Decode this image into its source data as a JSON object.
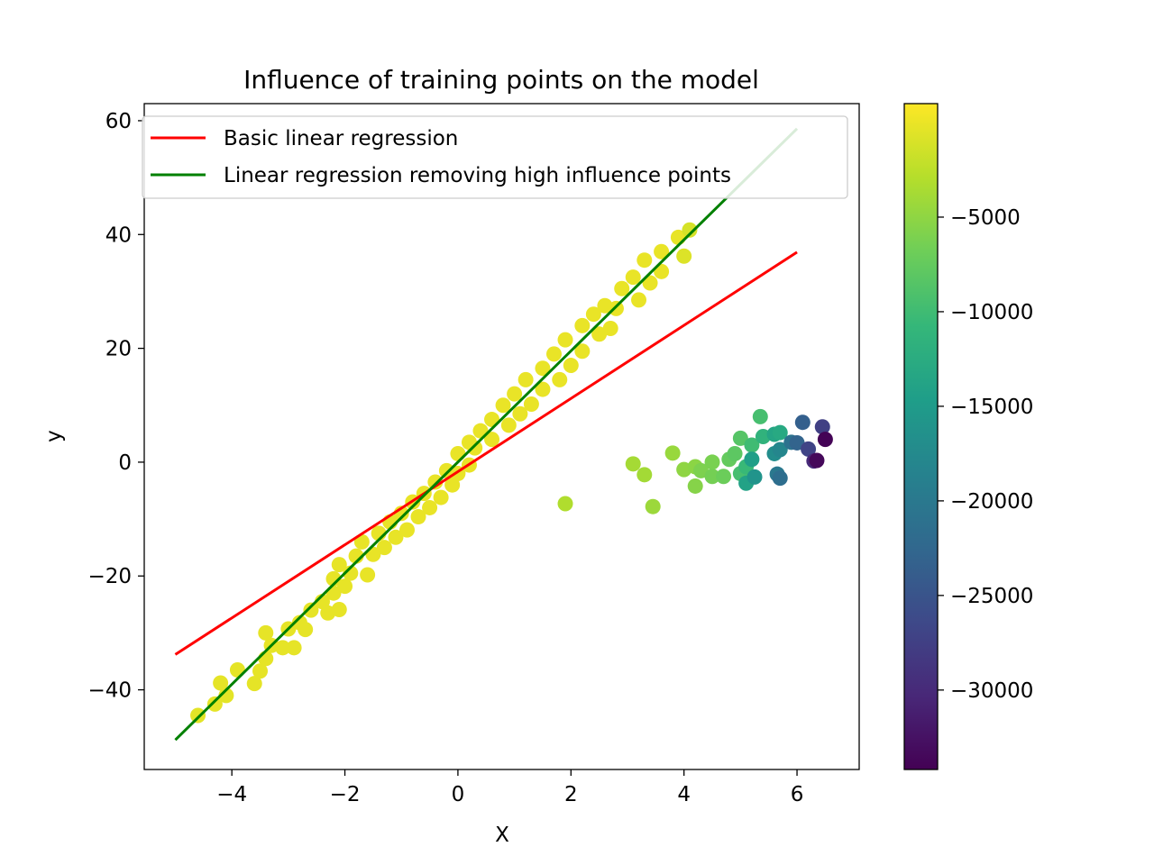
{
  "chart_data": {
    "type": "scatter",
    "title": "Influence of training points on the model",
    "xlabel": "X",
    "ylabel": "y",
    "xlim": [
      -5.55,
      7.1
    ],
    "ylim": [
      -54,
      63
    ],
    "xticks": [
      -4,
      -2,
      0,
      2,
      4,
      6
    ],
    "yticks": [
      -40,
      -20,
      0,
      20,
      40,
      60
    ],
    "grid": false,
    "legend": {
      "placement": "upper-left",
      "entries": [
        {
          "label": "Basic linear regression",
          "color": "#ff0000"
        },
        {
          "label": "Linear regression removing high influence points",
          "color": "#008000"
        }
      ]
    },
    "lines": [
      {
        "name": "Basic linear regression",
        "color": "#ff0000",
        "x": [
          -5,
          6
        ],
        "y": [
          -33.8,
          36.9
        ]
      },
      {
        "name": "Linear regression removing high influence points",
        "color": "#008000",
        "x": [
          -5,
          6
        ],
        "y": [
          -48.8,
          58.6
        ]
      }
    ],
    "colorbar": {
      "range": [
        -34200,
        1000
      ],
      "ticks": [
        -5000,
        -10000,
        -15000,
        -20000,
        -25000,
        -30000
      ],
      "tick_labels": [
        "−5000",
        "−10000",
        "−15000",
        "−20000",
        "−25000",
        "−30000"
      ],
      "colormap": "viridis"
    },
    "points": [
      {
        "x": -4.6,
        "y": -44.5,
        "c": -400
      },
      {
        "x": -4.3,
        "y": -42.5,
        "c": -300
      },
      {
        "x": -4.1,
        "y": -41.0,
        "c": -400
      },
      {
        "x": -4.2,
        "y": -38.8,
        "c": -300
      },
      {
        "x": -3.9,
        "y": -36.5,
        "c": -300
      },
      {
        "x": -3.6,
        "y": -38.9,
        "c": -300
      },
      {
        "x": -3.5,
        "y": -36.7,
        "c": -250
      },
      {
        "x": -3.4,
        "y": -34.5,
        "c": -250
      },
      {
        "x": -3.3,
        "y": -32.2,
        "c": -250
      },
      {
        "x": -3.4,
        "y": -30.0,
        "c": -250
      },
      {
        "x": -3.1,
        "y": -32.6,
        "c": -250
      },
      {
        "x": -2.9,
        "y": -32.6,
        "c": -250
      },
      {
        "x": -3.0,
        "y": -29.3,
        "c": -250
      },
      {
        "x": -2.8,
        "y": -28.2,
        "c": -250
      },
      {
        "x": -2.6,
        "y": -26.0,
        "c": -250
      },
      {
        "x": -2.7,
        "y": -29.4,
        "c": -250
      },
      {
        "x": -2.4,
        "y": -24.5,
        "c": -200
      },
      {
        "x": -2.3,
        "y": -26.5,
        "c": -200
      },
      {
        "x": -2.2,
        "y": -23.0,
        "c": -200
      },
      {
        "x": -2.1,
        "y": -25.9,
        "c": -200
      },
      {
        "x": -2.2,
        "y": -20.5,
        "c": -200
      },
      {
        "x": -2.0,
        "y": -21.8,
        "c": -200
      },
      {
        "x": -2.1,
        "y": -18.0,
        "c": -200
      },
      {
        "x": -1.9,
        "y": -19.5,
        "c": -200
      },
      {
        "x": -1.8,
        "y": -16.5,
        "c": -150
      },
      {
        "x": -1.6,
        "y": -19.8,
        "c": -150
      },
      {
        "x": -1.7,
        "y": -14.0,
        "c": -150
      },
      {
        "x": -1.5,
        "y": -16.2,
        "c": -150
      },
      {
        "x": -1.4,
        "y": -12.5,
        "c": -150
      },
      {
        "x": -1.3,
        "y": -15.0,
        "c": -150
      },
      {
        "x": -1.2,
        "y": -10.5,
        "c": -150
      },
      {
        "x": -1.1,
        "y": -13.2,
        "c": -150
      },
      {
        "x": -1.0,
        "y": -9.0,
        "c": -100
      },
      {
        "x": -0.9,
        "y": -11.9,
        "c": -100
      },
      {
        "x": -0.8,
        "y": -7.0,
        "c": -100
      },
      {
        "x": -0.7,
        "y": -9.6,
        "c": -100
      },
      {
        "x": -0.6,
        "y": -5.5,
        "c": -100
      },
      {
        "x": -0.5,
        "y": -8.0,
        "c": -100
      },
      {
        "x": -0.4,
        "y": -3.5,
        "c": -100
      },
      {
        "x": -0.3,
        "y": -6.2,
        "c": -100
      },
      {
        "x": -0.2,
        "y": -1.5,
        "c": -100
      },
      {
        "x": -0.1,
        "y": -4.0,
        "c": -100
      },
      {
        "x": 0.0,
        "y": 1.5,
        "c": -100
      },
      {
        "x": 0.0,
        "y": -2.0,
        "c": -100
      },
      {
        "x": 0.2,
        "y": 3.5,
        "c": -100
      },
      {
        "x": 0.2,
        "y": -0.5,
        "c": -100
      },
      {
        "x": 0.4,
        "y": 5.5,
        "c": -100
      },
      {
        "x": 0.3,
        "y": 2.5,
        "c": -100
      },
      {
        "x": 0.6,
        "y": 7.5,
        "c": -100
      },
      {
        "x": 0.6,
        "y": 4.0,
        "c": -100
      },
      {
        "x": 0.8,
        "y": 10.0,
        "c": -100
      },
      {
        "x": 0.9,
        "y": 6.5,
        "c": -100
      },
      {
        "x": 1.0,
        "y": 12.0,
        "c": -100
      },
      {
        "x": 1.1,
        "y": 8.5,
        "c": -100
      },
      {
        "x": 1.2,
        "y": 14.5,
        "c": -100
      },
      {
        "x": 1.3,
        "y": 10.2,
        "c": -100
      },
      {
        "x": 1.5,
        "y": 16.5,
        "c": -100
      },
      {
        "x": 1.5,
        "y": 12.8,
        "c": -100
      },
      {
        "x": 1.7,
        "y": 19.0,
        "c": -100
      },
      {
        "x": 1.8,
        "y": 14.5,
        "c": -100
      },
      {
        "x": 1.9,
        "y": 21.5,
        "c": -100
      },
      {
        "x": 2.0,
        "y": 17.0,
        "c": -100
      },
      {
        "x": 2.2,
        "y": 24.0,
        "c": -100
      },
      {
        "x": 2.2,
        "y": 19.5,
        "c": -100
      },
      {
        "x": 2.4,
        "y": 26.0,
        "c": -100
      },
      {
        "x": 2.5,
        "y": 22.5,
        "c": -100
      },
      {
        "x": 2.6,
        "y": 27.5,
        "c": -100
      },
      {
        "x": 2.7,
        "y": 23.5,
        "c": -100
      },
      {
        "x": 2.9,
        "y": 30.5,
        "c": -100
      },
      {
        "x": 2.8,
        "y": 27.0,
        "c": -100
      },
      {
        "x": 3.1,
        "y": 32.5,
        "c": -100
      },
      {
        "x": 3.2,
        "y": 28.5,
        "c": -100
      },
      {
        "x": 3.3,
        "y": 35.5,
        "c": -100
      },
      {
        "x": 3.4,
        "y": 31.5,
        "c": -100
      },
      {
        "x": 3.6,
        "y": 37.0,
        "c": -100
      },
      {
        "x": 3.6,
        "y": 33.5,
        "c": -100
      },
      {
        "x": 3.9,
        "y": 39.5,
        "c": -150
      },
      {
        "x": 4.0,
        "y": 36.2,
        "c": -800
      },
      {
        "x": 4.1,
        "y": 40.8,
        "c": -1200
      },
      {
        "x": 1.9,
        "y": -7.3,
        "c": -3200
      },
      {
        "x": 3.1,
        "y": -0.3,
        "c": -3800
      },
      {
        "x": 3.3,
        "y": -2.2,
        "c": -3900
      },
      {
        "x": 3.45,
        "y": -7.8,
        "c": -4300
      },
      {
        "x": 3.8,
        "y": 1.6,
        "c": -4500
      },
      {
        "x": 4.0,
        "y": -1.3,
        "c": -5000
      },
      {
        "x": 4.2,
        "y": -0.8,
        "c": -5200
      },
      {
        "x": 4.2,
        "y": -4.2,
        "c": -5500
      },
      {
        "x": 4.3,
        "y": -1.5,
        "c": -6000
      },
      {
        "x": 4.5,
        "y": 0.0,
        "c": -6200
      },
      {
        "x": 4.5,
        "y": -2.5,
        "c": -6500
      },
      {
        "x": 4.7,
        "y": -2.5,
        "c": -7000
      },
      {
        "x": 4.8,
        "y": 0.5,
        "c": -7500
      },
      {
        "x": 4.9,
        "y": 1.5,
        "c": -8000
      },
      {
        "x": 5.0,
        "y": 4.2,
        "c": -8500
      },
      {
        "x": 5.0,
        "y": -2.0,
        "c": -9500
      },
      {
        "x": 5.1,
        "y": -0.8,
        "c": -10500
      },
      {
        "x": 5.2,
        "y": 3.0,
        "c": -10000
      },
      {
        "x": 5.35,
        "y": 8.0,
        "c": -9500
      },
      {
        "x": 5.4,
        "y": 4.5,
        "c": -11500
      },
      {
        "x": 5.1,
        "y": -3.7,
        "c": -14000
      },
      {
        "x": 5.2,
        "y": 0.5,
        "c": -14500
      },
      {
        "x": 5.25,
        "y": -2.6,
        "c": -16000
      },
      {
        "x": 5.6,
        "y": 4.9,
        "c": -13500
      },
      {
        "x": 5.7,
        "y": 5.2,
        "c": -13000
      },
      {
        "x": 5.6,
        "y": 1.5,
        "c": -17000
      },
      {
        "x": 5.7,
        "y": 2.2,
        "c": -18000
      },
      {
        "x": 5.65,
        "y": -2.1,
        "c": -20000
      },
      {
        "x": 5.7,
        "y": -2.8,
        "c": -21500
      },
      {
        "x": 5.9,
        "y": 3.5,
        "c": -21000
      },
      {
        "x": 6.0,
        "y": 3.4,
        "c": -23000
      },
      {
        "x": 6.1,
        "y": 7.0,
        "c": -23500
      },
      {
        "x": 6.2,
        "y": 2.3,
        "c": -27000
      },
      {
        "x": 6.3,
        "y": 0.2,
        "c": -30000
      },
      {
        "x": 6.35,
        "y": 0.3,
        "c": -33500
      },
      {
        "x": 6.45,
        "y": 6.2,
        "c": -27500
      },
      {
        "x": 6.5,
        "y": 4.0,
        "c": -34000
      }
    ]
  }
}
